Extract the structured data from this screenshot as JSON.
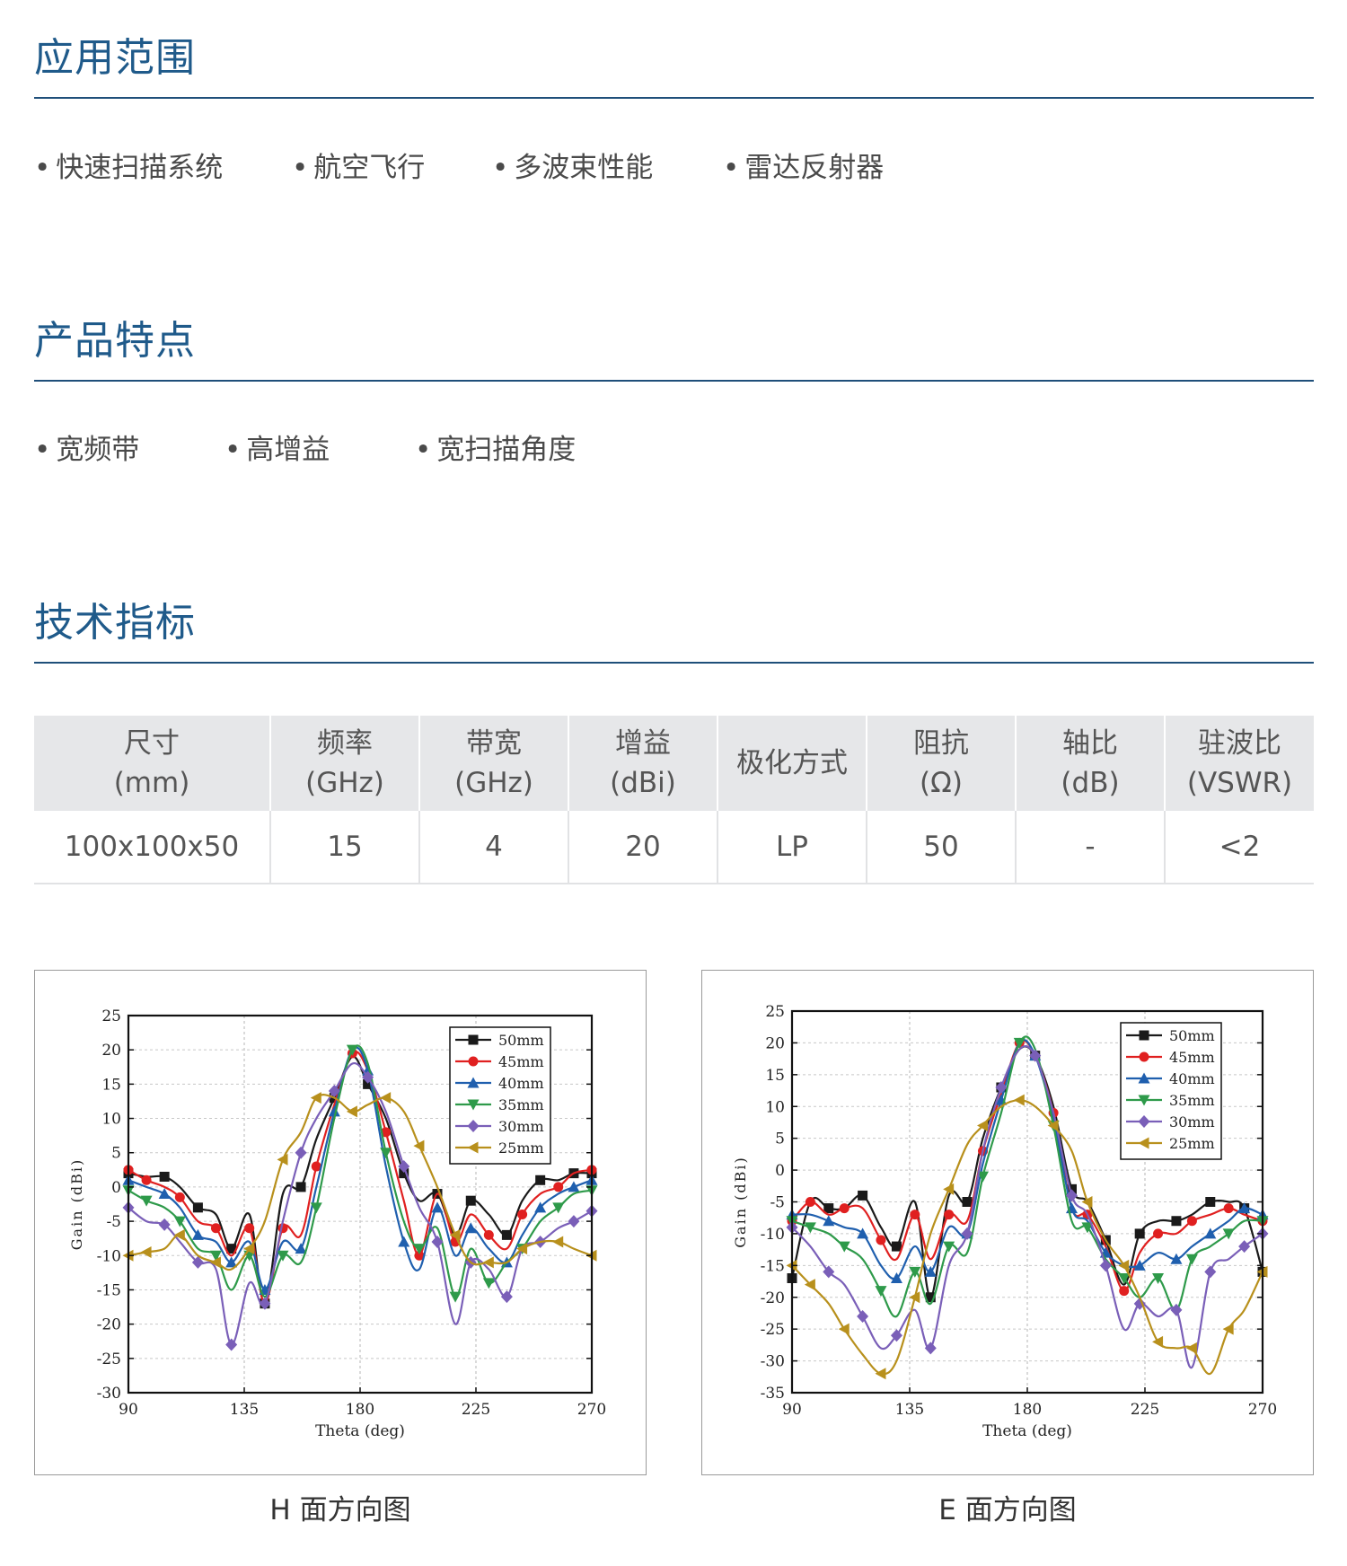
{
  "sections": {
    "applications": {
      "title": "应用范围",
      "items": [
        "快速扫描系统",
        "航空飞行",
        "多波束性能",
        "雷达反射器"
      ]
    },
    "features": {
      "title": "产品特点",
      "items": [
        "宽频带",
        "高增益",
        "宽扫描角度"
      ]
    },
    "specs": {
      "title": "技术指标",
      "headers": [
        {
          "line1": "尺寸",
          "line2": "(mm)"
        },
        {
          "line1": "频率",
          "line2": "(GHz)"
        },
        {
          "line1": "带宽",
          "line2": "(GHz)"
        },
        {
          "line1": "增益",
          "line2": "(dBi)"
        },
        {
          "line1": "极化方式",
          "line2": ""
        },
        {
          "line1": "阻抗",
          "line2": "(Ω)"
        },
        {
          "line1": "轴比",
          "line2": "(dB)"
        },
        {
          "line1": "驻波比",
          "line2": "(VSWR)"
        }
      ],
      "row": [
        "100x100x50",
        "15",
        "4",
        "20",
        "LP",
        "50",
        "-",
        "<2"
      ]
    }
  },
  "colors": {
    "title": "#1f5a8a",
    "rule": "#1f4f7a",
    "header_bg": "#e6e7e9"
  },
  "chart_data": [
    {
      "type": "line",
      "caption": "H 面方向图",
      "xlabel": "Theta (deg)",
      "ylabel": "Gain (dBi)",
      "xlim": [
        90,
        270
      ],
      "ylim": [
        -30,
        25
      ],
      "xticks": [
        90,
        135,
        180,
        225,
        270
      ],
      "yticks": [
        -30,
        -25,
        -20,
        -15,
        -10,
        -5,
        0,
        5,
        10,
        15,
        20,
        25
      ],
      "grid": true,
      "legend_position": "top-right",
      "series": [
        {
          "name": "50mm",
          "color": "#1a1a1a",
          "marker": "square",
          "x": [
            90,
            97,
            104,
            110,
            117,
            124,
            130,
            137,
            143,
            150,
            157,
            163,
            170,
            177,
            183,
            190,
            197,
            203,
            210,
            217,
            223,
            230,
            237,
            243,
            250,
            257,
            263,
            270
          ],
          "y": [
            2,
            1.5,
            1.5,
            0,
            -3,
            -4,
            -9,
            -4,
            -17,
            -1,
            0,
            7,
            13,
            19,
            15,
            10,
            2,
            -2,
            -1,
            -7,
            -2,
            -4,
            -7,
            -2,
            1,
            1,
            2,
            2
          ]
        },
        {
          "name": "45mm",
          "color": "#e02020",
          "marker": "circle",
          "x": [
            90,
            97,
            104,
            110,
            117,
            124,
            130,
            137,
            143,
            150,
            157,
            163,
            170,
            177,
            183,
            190,
            197,
            203,
            210,
            217,
            223,
            230,
            237,
            243,
            250,
            257,
            263,
            270
          ],
          "y": [
            2.5,
            1,
            0,
            -1.5,
            -5,
            -6,
            -10,
            -6,
            -17,
            -6,
            -7,
            3,
            12,
            19.5,
            17,
            8,
            -2,
            -10,
            -1,
            -8,
            -4,
            -7,
            -9,
            -4,
            -1,
            0,
            2,
            2.5
          ]
        },
        {
          "name": "40mm",
          "color": "#1f5fae",
          "marker": "triangle-up",
          "x": [
            90,
            97,
            104,
            110,
            117,
            124,
            130,
            137,
            143,
            150,
            157,
            163,
            170,
            177,
            183,
            190,
            197,
            203,
            210,
            217,
            223,
            230,
            237,
            243,
            250,
            257,
            263,
            270
          ],
          "y": [
            1,
            0,
            -1,
            -3,
            -7,
            -8,
            -11,
            -8,
            -15,
            -8,
            -9,
            0,
            11,
            20,
            17,
            3,
            -8,
            -12,
            -3,
            -10,
            -6,
            -9,
            -11,
            -7,
            -3,
            -1,
            0,
            1
          ]
        },
        {
          "name": "35mm",
          "color": "#2e9a4a",
          "marker": "triangle-down",
          "x": [
            90,
            97,
            104,
            110,
            117,
            124,
            130,
            137,
            143,
            150,
            157,
            163,
            170,
            177,
            183,
            190,
            197,
            203,
            210,
            217,
            223,
            230,
            237,
            243,
            250,
            257,
            263,
            270
          ],
          "y": [
            -0.5,
            -2,
            -3,
            -5,
            -9,
            -10,
            -15,
            -10,
            -16,
            -10,
            -11,
            -3,
            10,
            20,
            18,
            5,
            -5,
            -9,
            -6,
            -16,
            -9,
            -14,
            -11,
            -9,
            -5,
            -3,
            -1,
            -0.5
          ]
        },
        {
          "name": "30mm",
          "color": "#7a5fb8",
          "marker": "diamond",
          "x": [
            90,
            97,
            104,
            110,
            117,
            124,
            130,
            137,
            143,
            150,
            157,
            163,
            170,
            177,
            183,
            190,
            197,
            203,
            210,
            217,
            223,
            230,
            237,
            243,
            250,
            257,
            263,
            270
          ],
          "y": [
            -3,
            -5,
            -5.5,
            -8,
            -11,
            -12,
            -23,
            -14,
            -17,
            -5,
            5,
            10,
            14,
            18,
            16,
            11,
            3,
            -3,
            -8,
            -20,
            -11,
            -12,
            -16,
            -9,
            -8,
            -6,
            -5,
            -3.5
          ]
        },
        {
          "name": "25mm",
          "color": "#b8901c",
          "marker": "triangle-left",
          "x": [
            90,
            97,
            104,
            110,
            117,
            124,
            130,
            137,
            143,
            150,
            157,
            163,
            170,
            177,
            183,
            190,
            197,
            203,
            210,
            217,
            223,
            230,
            237,
            243,
            250,
            257,
            263,
            270
          ],
          "y": [
            -10,
            -9.5,
            -9,
            -7,
            -10,
            -11,
            -12,
            -9,
            -5,
            4,
            8,
            13,
            13,
            11,
            12,
            13,
            11,
            6,
            0,
            -7,
            -11,
            -11,
            -11,
            -9,
            -8,
            -8,
            -9,
            -10
          ]
        }
      ]
    },
    {
      "type": "line",
      "caption": "E 面方向图",
      "xlabel": "Theta (deg)",
      "ylabel": "Gain (dBi)",
      "xlim": [
        90,
        270
      ],
      "ylim": [
        -35,
        25
      ],
      "xticks": [
        90,
        135,
        180,
        225,
        270
      ],
      "yticks": [
        -35,
        -30,
        -25,
        -20,
        -15,
        -10,
        -5,
        0,
        5,
        10,
        15,
        20,
        25
      ],
      "grid": true,
      "legend_position": "top-right",
      "series": [
        {
          "name": "50mm",
          "color": "#1a1a1a",
          "marker": "square",
          "x": [
            90,
            97,
            104,
            110,
            117,
            124,
            130,
            137,
            143,
            150,
            157,
            163,
            170,
            177,
            183,
            190,
            197,
            203,
            210,
            217,
            223,
            230,
            237,
            243,
            250,
            257,
            263,
            270
          ],
          "y": [
            -17,
            -5,
            -6,
            -6,
            -4,
            -9,
            -12,
            -5,
            -20,
            -4,
            -5,
            5,
            13,
            19,
            18,
            10,
            -3,
            -5,
            -11,
            -18,
            -10,
            -8,
            -8,
            -7,
            -5,
            -5,
            -6,
            -16
          ]
        },
        {
          "name": "45mm",
          "color": "#e02020",
          "marker": "circle",
          "x": [
            90,
            97,
            104,
            110,
            117,
            124,
            130,
            137,
            143,
            150,
            157,
            163,
            170,
            177,
            183,
            190,
            197,
            203,
            210,
            217,
            223,
            230,
            237,
            243,
            250,
            257,
            263,
            270
          ],
          "y": [
            -8,
            -5,
            -7,
            -6,
            -6,
            -11,
            -14,
            -7,
            -14,
            -7,
            -8,
            3,
            12,
            20,
            18,
            9,
            -6,
            -7,
            -12,
            -19,
            -13,
            -10,
            -10,
            -8,
            -7,
            -6,
            -7,
            -8
          ]
        },
        {
          "name": "40mm",
          "color": "#1f5fae",
          "marker": "triangle-up",
          "x": [
            90,
            97,
            104,
            110,
            117,
            124,
            130,
            137,
            143,
            150,
            157,
            163,
            170,
            177,
            183,
            190,
            197,
            203,
            210,
            217,
            223,
            230,
            237,
            243,
            250,
            257,
            263,
            270
          ],
          "y": [
            -7,
            -7,
            -8,
            -9,
            -10,
            -15,
            -17,
            -12,
            -16,
            -9,
            -10,
            1,
            11,
            20,
            18,
            8,
            -6,
            -8,
            -13,
            -15,
            -15,
            -13,
            -14,
            -12,
            -10,
            -8,
            -6,
            -7
          ]
        },
        {
          "name": "35mm",
          "color": "#2e9a4a",
          "marker": "triangle-down",
          "x": [
            90,
            97,
            104,
            110,
            117,
            124,
            130,
            137,
            143,
            150,
            157,
            163,
            170,
            177,
            183,
            190,
            197,
            203,
            210,
            217,
            223,
            230,
            237,
            243,
            250,
            257,
            263,
            270
          ],
          "y": [
            -8,
            -9,
            -10,
            -12,
            -14,
            -19,
            -23,
            -16,
            -21,
            -12,
            -13,
            -1,
            9,
            20,
            19,
            7,
            -8,
            -9,
            -14,
            -17,
            -20,
            -17,
            -22,
            -14,
            -12,
            -10,
            -8,
            -8
          ]
        },
        {
          "name": "30mm",
          "color": "#7a5fb8",
          "marker": "diamond",
          "x": [
            90,
            97,
            104,
            110,
            117,
            124,
            130,
            137,
            143,
            150,
            157,
            163,
            170,
            177,
            183,
            190,
            197,
            203,
            210,
            217,
            223,
            230,
            237,
            243,
            250,
            257,
            263,
            270
          ],
          "y": [
            -9,
            -12,
            -16,
            -18,
            -23,
            -28,
            -26,
            -22,
            -28,
            -15,
            -10,
            3,
            13,
            19,
            18,
            9,
            -4,
            -7,
            -15,
            -25,
            -21,
            -23,
            -22,
            -31,
            -16,
            -14,
            -12,
            -10
          ]
        },
        {
          "name": "25mm",
          "color": "#b8901c",
          "marker": "triangle-left",
          "x": [
            90,
            97,
            104,
            110,
            117,
            124,
            130,
            137,
            143,
            150,
            157,
            163,
            170,
            177,
            183,
            190,
            197,
            203,
            210,
            217,
            223,
            230,
            237,
            243,
            250,
            257,
            263,
            270
          ],
          "y": [
            -15,
            -18,
            -21,
            -25,
            -29,
            -32,
            -30,
            -20,
            -10,
            -3,
            4,
            7,
            10,
            11,
            10,
            7,
            3,
            -5,
            -11,
            -15,
            -20,
            -27,
            -28,
            -28,
            -32,
            -25,
            -22,
            -16
          ]
        }
      ]
    }
  ]
}
